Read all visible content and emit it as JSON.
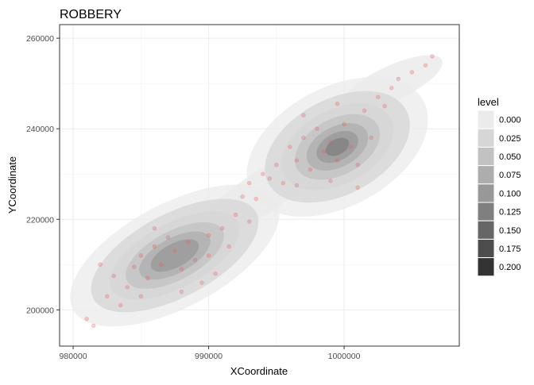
{
  "chart_data": {
    "type": "heatmap",
    "subtype": "2d-density-contour-with-points",
    "title": "ROBBERY",
    "xlabel": "XCoordinate",
    "ylabel": "YCoordinate",
    "xlim": [
      979000,
      1008500
    ],
    "ylim": [
      192000,
      263000
    ],
    "x_ticks": [
      980000,
      990000,
      1000000
    ],
    "x_tick_labels": [
      "980000",
      "990000",
      "1000000"
    ],
    "y_ticks": [
      200000,
      220000,
      240000,
      260000
    ],
    "y_tick_labels": [
      "200000",
      "220000",
      "240000",
      "260000"
    ],
    "grid": true,
    "legend": {
      "title": "level",
      "placement": "right",
      "levels": [
        "0.000",
        "0.025",
        "0.050",
        "0.075",
        "0.100",
        "0.125",
        "0.150",
        "0.175",
        "0.200"
      ],
      "colors": [
        "#ebebeb",
        "#d6d6d6",
        "#c2c2c2",
        "#adadad",
        "#989898",
        "#7f7f7f",
        "#666666",
        "#4d4d4d",
        "#333333"
      ]
    },
    "point_color": "#e8585d",
    "density_centers": [
      {
        "x": 987500,
        "y": 212000,
        "peak_level": 0.125
      },
      {
        "x": 999500,
        "y": 234000,
        "peak_level": 0.15
      }
    ],
    "points": [
      [
        981000,
        198000
      ],
      [
        981500,
        196500
      ],
      [
        982500,
        203000
      ],
      [
        983000,
        207500
      ],
      [
        983500,
        201000
      ],
      [
        984000,
        205000
      ],
      [
        984500,
        209500
      ],
      [
        985000,
        212000
      ],
      [
        985500,
        207000
      ],
      [
        986000,
        214000
      ],
      [
        986500,
        210000
      ],
      [
        987000,
        216000
      ],
      [
        987500,
        213000
      ],
      [
        988000,
        209000
      ],
      [
        988500,
        215000
      ],
      [
        989000,
        211000
      ],
      [
        989500,
        206000
      ],
      [
        990000,
        212000
      ],
      [
        990500,
        208000
      ],
      [
        991000,
        218000
      ],
      [
        991500,
        214000
      ],
      [
        992000,
        221000
      ],
      [
        992500,
        225000
      ],
      [
        993000,
        228000
      ],
      [
        993500,
        224500
      ],
      [
        994000,
        230000
      ],
      [
        994500,
        229000
      ],
      [
        995000,
        232000
      ],
      [
        995500,
        228000
      ],
      [
        996000,
        236000
      ],
      [
        996500,
        233000
      ],
      [
        997000,
        238000
      ],
      [
        997500,
        231000
      ],
      [
        998000,
        240000
      ],
      [
        998500,
        235000
      ],
      [
        999000,
        237000
      ],
      [
        999500,
        233000
      ],
      [
        1000000,
        241000
      ],
      [
        1000500,
        236000
      ],
      [
        1001000,
        232000
      ],
      [
        1001500,
        244000
      ],
      [
        1002000,
        238000
      ],
      [
        1002500,
        247000
      ],
      [
        1003000,
        245000
      ],
      [
        1003500,
        249000
      ],
      [
        1004000,
        251000
      ],
      [
        1005000,
        252500
      ],
      [
        1006000,
        254000
      ],
      [
        1006500,
        256000
      ],
      [
        982000,
        210000
      ],
      [
        985000,
        203000
      ],
      [
        988000,
        204000
      ],
      [
        986000,
        218000
      ],
      [
        990000,
        216500
      ],
      [
        993000,
        219500
      ],
      [
        996500,
        227500
      ],
      [
        999000,
        228500
      ],
      [
        1001000,
        227000
      ],
      [
        997000,
        243000
      ],
      [
        999500,
        245500
      ]
    ]
  }
}
